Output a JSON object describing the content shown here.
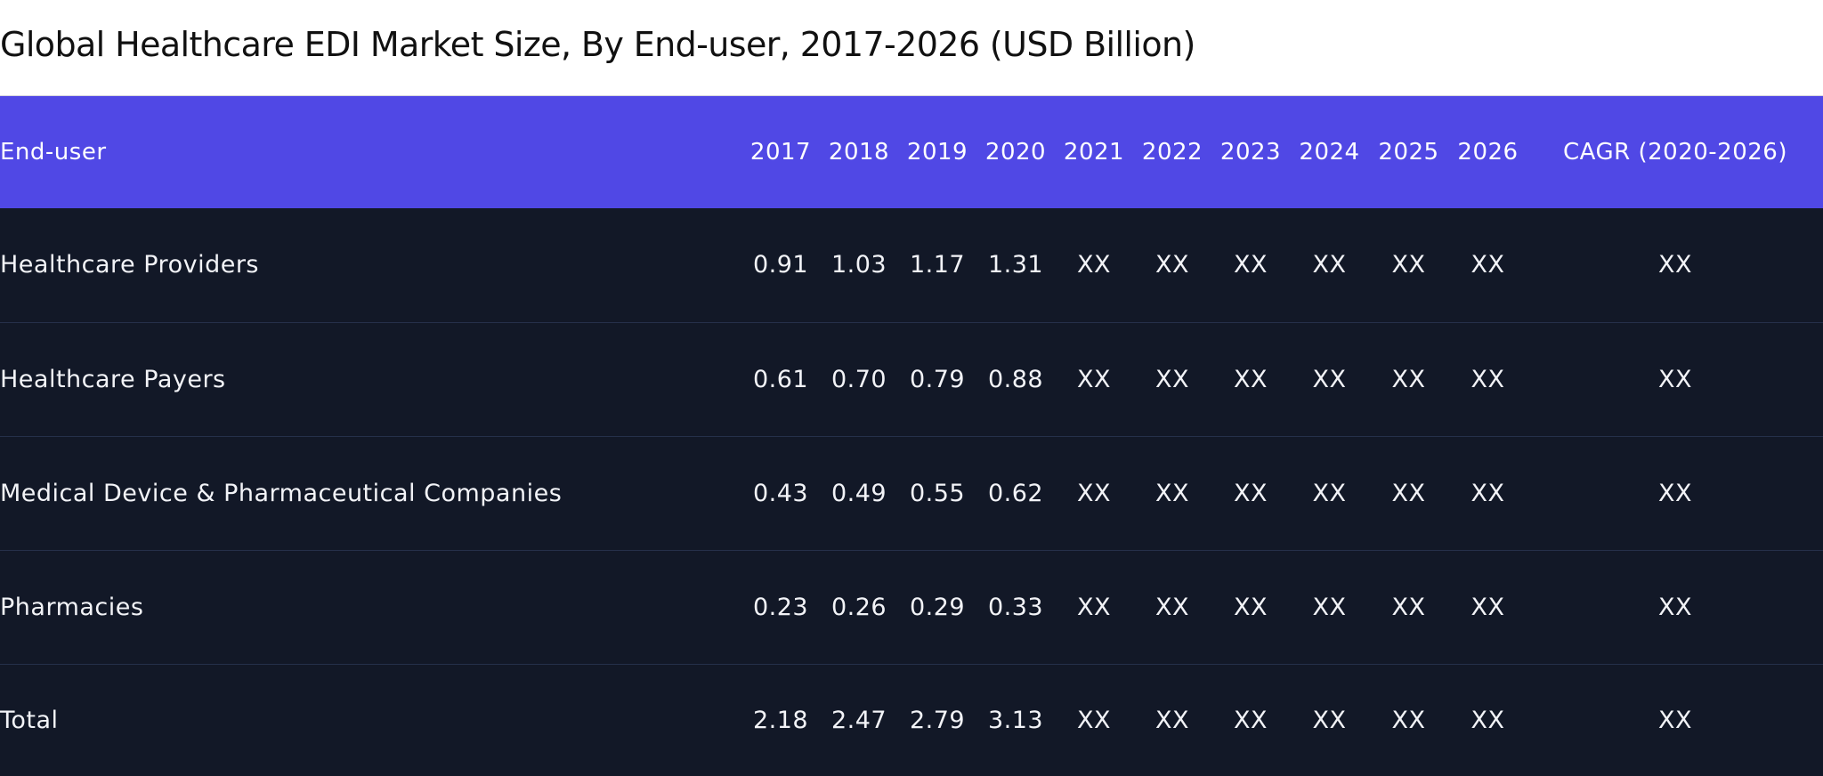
{
  "chart_data": {
    "type": "table",
    "title": "Global Healthcare EDI Market Size, By End-user, 2017-2026 (USD Billion)",
    "columns": [
      "End-user",
      "2017",
      "2018",
      "2019",
      "2020",
      "2021",
      "2022",
      "2023",
      "2024",
      "2025",
      "2026",
      "CAGR (2020-2026)"
    ],
    "rows": [
      [
        "Healthcare Providers",
        "0.91",
        "1.03",
        "1.17",
        "1.31",
        "XX",
        "XX",
        "XX",
        "XX",
        "XX",
        "XX",
        "XX"
      ],
      [
        "Healthcare Payers",
        "0.61",
        "0.70",
        "0.79",
        "0.88",
        "XX",
        "XX",
        "XX",
        "XX",
        "XX",
        "XX",
        "XX"
      ],
      [
        "Medical Device & Pharmaceutical Companies",
        "0.43",
        "0.49",
        "0.55",
        "0.62",
        "XX",
        "XX",
        "XX",
        "XX",
        "XX",
        "XX",
        "XX"
      ],
      [
        "Pharmacies",
        "0.23",
        "0.26",
        "0.29",
        "0.33",
        "XX",
        "XX",
        "XX",
        "XX",
        "XX",
        "XX",
        "XX"
      ],
      [
        "Total",
        "2.18",
        "2.47",
        "2.79",
        "3.13",
        "XX",
        "XX",
        "XX",
        "XX",
        "XX",
        "XX",
        "XX"
      ]
    ]
  },
  "colors": {
    "header_background": "#5048e5",
    "body_background": "#121827",
    "row_divider": "#25304a",
    "header_text": "#ffffff",
    "body_text": "#f2f3f7"
  }
}
